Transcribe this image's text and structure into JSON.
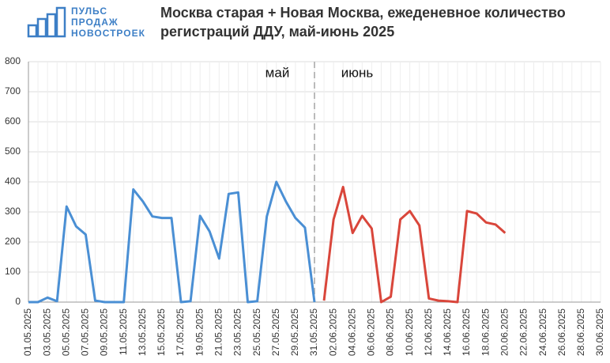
{
  "logo": [
    "ПУЛЬС",
    "ПРОДАЖ",
    "НОВОСТРОЕК"
  ],
  "chart_data": {
    "type": "line",
    "title": [
      "Москва старая + Новая Москва, ежеденевное количество",
      "регистраций ДДУ, май-июнь 2025"
    ],
    "annotations": [
      "май",
      "июнь"
    ],
    "categories": [
      "01.05.2025",
      null,
      "03.05.2025",
      null,
      "05.05.2025",
      null,
      "07.05.2025",
      null,
      "09.05.2025",
      null,
      "11.05.2025",
      null,
      "13.05.2025",
      null,
      "15.05.2025",
      null,
      "17.05.2025",
      null,
      "19.05.2025",
      null,
      "21.05.2025",
      null,
      "23.05.2025",
      null,
      "25.05.2025",
      null,
      "27.05.2025",
      null,
      "29.05.2025",
      null,
      "31.05.2025",
      null,
      "02.06.2025",
      null,
      "04.06.2025",
      null,
      "06.06.2025",
      null,
      "08.06.2025",
      null,
      "10.06.2025",
      null,
      "12.06.2025",
      null,
      "14.06.2025",
      null,
      "16.06.2025",
      null,
      "18.06.2025",
      null,
      "20.06.2025",
      null,
      "22.06.2025",
      null,
      "24.06.2025",
      null,
      "26.06.2025",
      null,
      "28.06.2025",
      null,
      "30.06.2025"
    ],
    "series": [
      {
        "color": "#4a8fd4",
        "values": [
          0,
          0,
          15,
          3,
          318,
          252,
          225,
          5,
          0,
          0,
          0,
          375,
          335,
          285,
          280,
          280,
          0,
          3,
          287,
          235,
          145,
          360,
          365,
          0,
          3,
          285,
          400,
          335,
          280,
          248,
          0,
          null,
          null,
          null,
          null,
          null,
          null,
          null,
          null,
          null,
          null,
          null,
          null,
          null,
          null,
          null,
          null,
          null,
          null,
          null,
          null,
          null,
          null,
          null,
          null,
          null,
          null,
          null,
          null,
          null,
          null
        ]
      },
      {
        "color": "#d9463b",
        "values": [
          null,
          null,
          null,
          null,
          null,
          null,
          null,
          null,
          null,
          null,
          null,
          null,
          null,
          null,
          null,
          null,
          null,
          null,
          null,
          null,
          null,
          null,
          null,
          null,
          null,
          null,
          null,
          null,
          null,
          null,
          null,
          5,
          275,
          383,
          230,
          287,
          245,
          0,
          18,
          275,
          303,
          255,
          12,
          5,
          3,
          0,
          303,
          295,
          265,
          258,
          230,
          null,
          null,
          null,
          null,
          null,
          null,
          null,
          null,
          null,
          null
        ]
      }
    ],
    "ylim": [
      0,
      800
    ],
    "yticks": [
      0,
      100,
      200,
      300,
      400,
      500,
      600,
      700,
      800
    ],
    "grid": true
  }
}
